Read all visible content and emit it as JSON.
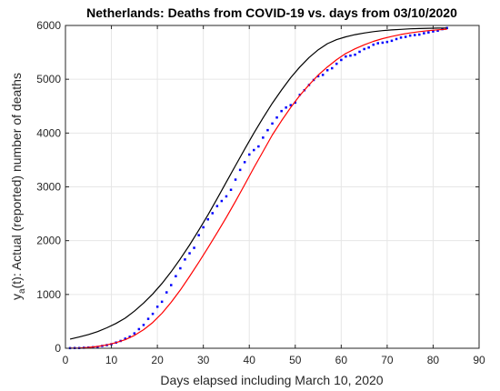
{
  "chart_data": {
    "type": "line",
    "title": "Netherlands: Deaths from COVID-19 vs. days from 03/10/2020",
    "xlabel": "Days elapsed including March 10, 2020",
    "ylabel": {
      "main": "y",
      "subscript": "a",
      "rest": "(t): Actual (reported) number of deaths"
    },
    "xlim": [
      0,
      90
    ],
    "ylim": [
      0,
      6000
    ],
    "xticks": [
      0,
      10,
      20,
      30,
      40,
      50,
      60,
      70,
      80,
      90
    ],
    "yticks": [
      0,
      1000,
      2000,
      3000,
      4000,
      5000,
      6000
    ],
    "grid": true,
    "legend": "none",
    "series": [
      {
        "style": "markers",
        "color": "#0000ff",
        "x": [
          1,
          2,
          3,
          4,
          5,
          6,
          7,
          8,
          9,
          10,
          11,
          12,
          13,
          14,
          15,
          16,
          17,
          18,
          19,
          20,
          21,
          22,
          23,
          24,
          25,
          26,
          27,
          28,
          29,
          30,
          31,
          32,
          33,
          34,
          35,
          36,
          37,
          38,
          39,
          40,
          41,
          42,
          43,
          44,
          45,
          46,
          47,
          48,
          49,
          50,
          51,
          52,
          53,
          54,
          55,
          56,
          57,
          58,
          59,
          60,
          61,
          62,
          63,
          64,
          65,
          66,
          67,
          68,
          69,
          70,
          71,
          72,
          73,
          74,
          75,
          76,
          77,
          78,
          79,
          80,
          81,
          82,
          83
        ],
        "y": [
          3,
          4,
          5,
          10,
          12,
          20,
          24,
          43,
          58,
          76,
          106,
          136,
          179,
          213,
          276,
          356,
          434,
          546,
          639,
          771,
          864,
          1039,
          1173,
          1339,
          1487,
          1651,
          1766,
          1867,
          2101,
          2248,
          2396,
          2511,
          2643,
          2737,
          2823,
          2945,
          3134,
          3315,
          3459,
          3601,
          3684,
          3751,
          3916,
          4054,
          4177,
          4289,
          4409,
          4475,
          4518,
          4566,
          4711,
          4795,
          4893,
          4987,
          5056,
          5082,
          5168,
          5204,
          5288,
          5359,
          5422,
          5440,
          5456,
          5510,
          5562,
          5590,
          5643,
          5670,
          5680,
          5694,
          5715,
          5748,
          5775,
          5788,
          5811,
          5822,
          5830,
          5856,
          5871,
          5890,
          5903,
          5931,
          5951
        ]
      },
      {
        "style": "line",
        "color": "#ff0000",
        "x": [
          1,
          3,
          5,
          7,
          9,
          11,
          13,
          15,
          17,
          19,
          21,
          23,
          25,
          27,
          29,
          31,
          33,
          35,
          37,
          39,
          41,
          43,
          45,
          47,
          49,
          51,
          53,
          55,
          57,
          59,
          61,
          63,
          65,
          67,
          69,
          71,
          73,
          75,
          77,
          79,
          81,
          83
        ],
        "y": [
          1,
          5,
          15,
          33,
          63,
          104,
          159,
          238,
          345,
          480,
          651,
          856,
          1084,
          1336,
          1596,
          1866,
          2145,
          2430,
          2733,
          3043,
          3356,
          3660,
          3963,
          4227,
          4473,
          4699,
          4896,
          5079,
          5229,
          5365,
          5479,
          5566,
          5640,
          5704,
          5755,
          5795,
          5832,
          5862,
          5885,
          5903,
          5919,
          5930
        ]
      },
      {
        "style": "line",
        "color": "#000000",
        "x": [
          1,
          3,
          5,
          7,
          9,
          11,
          13,
          15,
          17,
          19,
          21,
          23,
          25,
          27,
          29,
          31,
          33,
          35,
          37,
          39,
          41,
          43,
          45,
          47,
          49,
          51,
          53,
          55,
          57,
          59,
          61,
          63,
          65,
          67,
          69,
          71,
          73,
          75,
          77,
          79,
          81,
          83
        ],
        "y": [
          170,
          210,
          255,
          310,
          380,
          462,
          560,
          690,
          840,
          1010,
          1205,
          1423,
          1663,
          1918,
          2193,
          2478,
          2778,
          3088,
          3398,
          3703,
          4000,
          4283,
          4553,
          4798,
          5028,
          5228,
          5403,
          5548,
          5662,
          5737,
          5788,
          5829,
          5860,
          5885,
          5903,
          5918,
          5928,
          5937,
          5943,
          5948,
          5951,
          5953
        ]
      }
    ]
  }
}
